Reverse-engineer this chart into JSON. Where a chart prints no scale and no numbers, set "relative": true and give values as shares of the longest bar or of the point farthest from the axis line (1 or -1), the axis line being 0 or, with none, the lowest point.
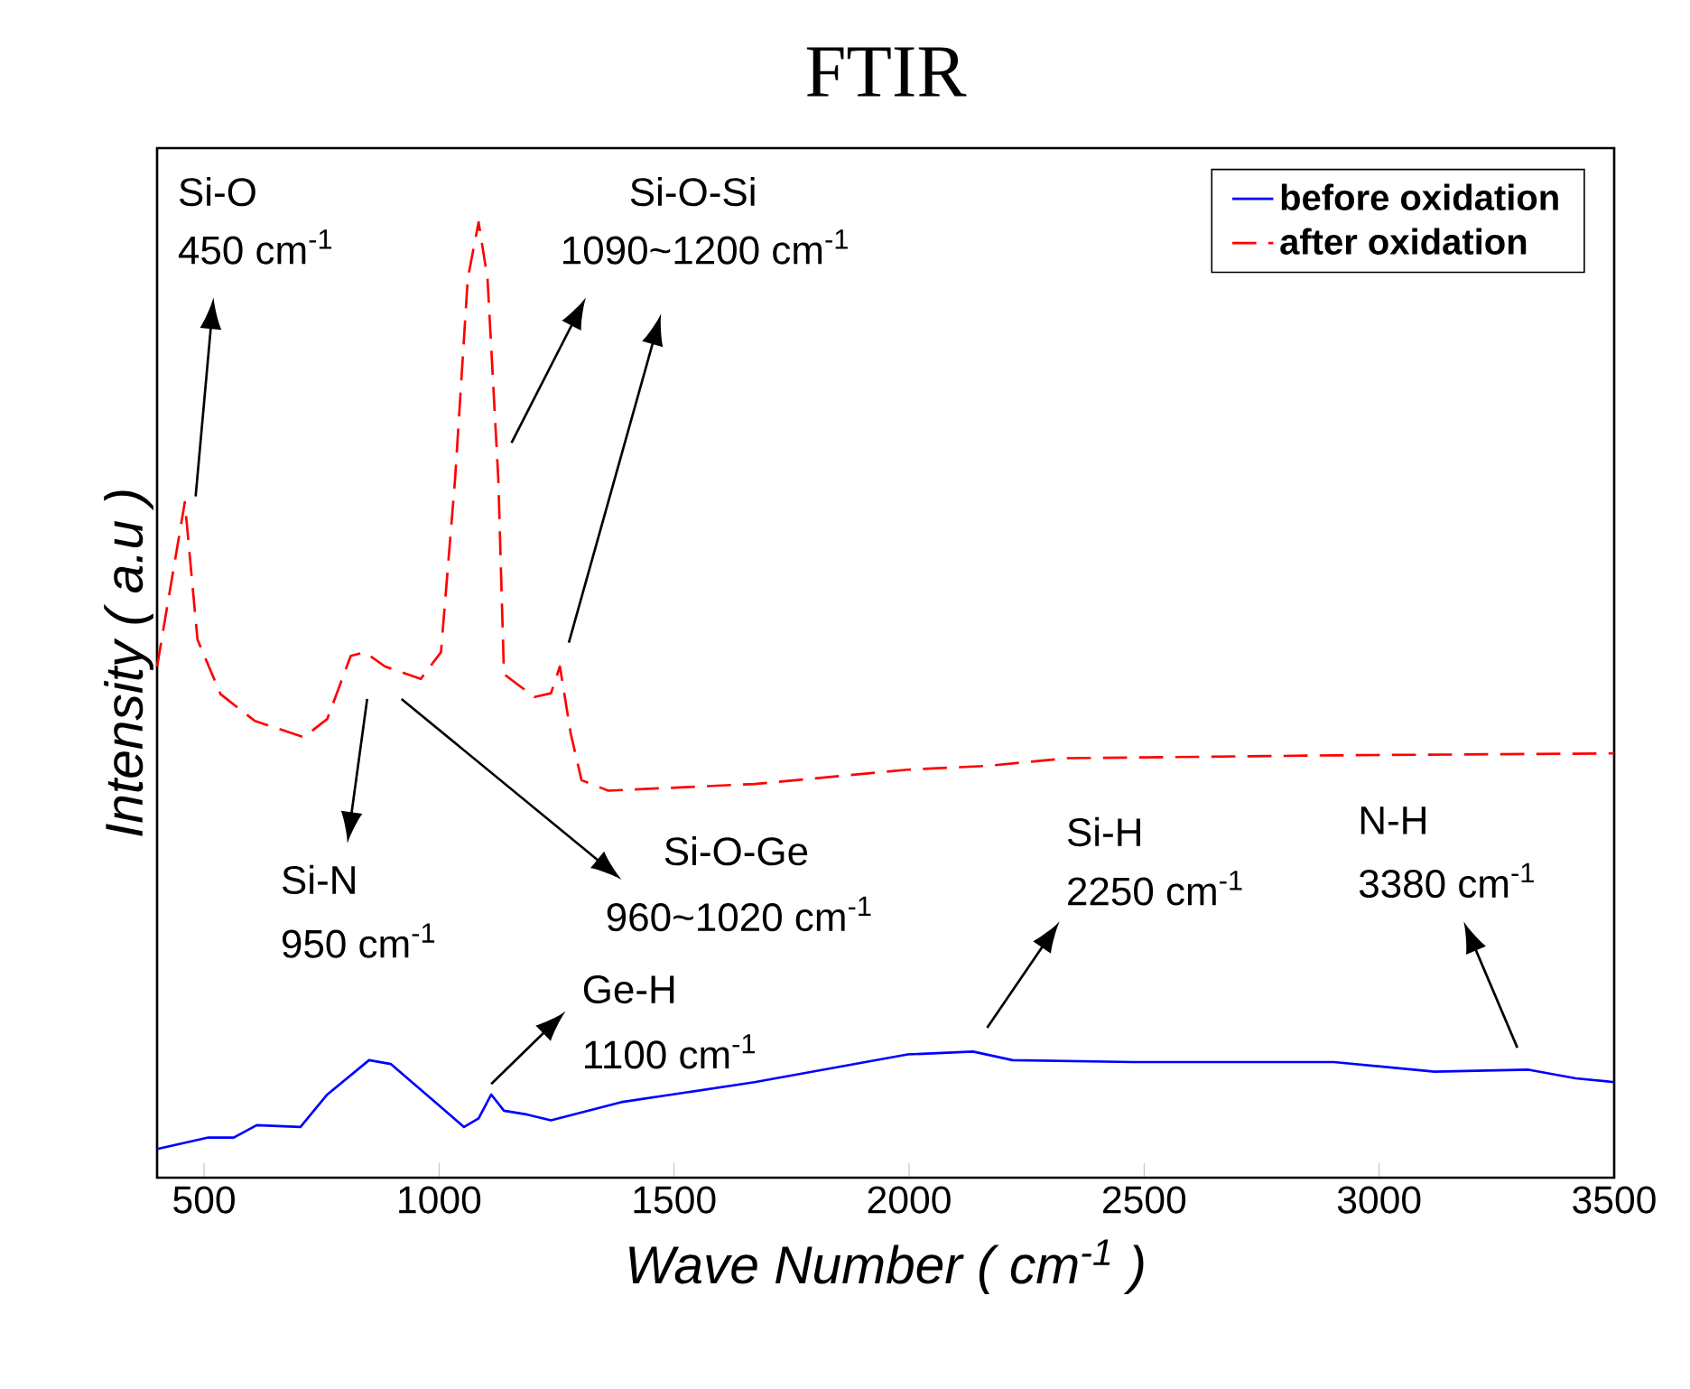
{
  "chart_data": {
    "type": "line",
    "title": "FTIR",
    "xlabel": "Wave Number ( cm$^{-1}$ )",
    "ylabel": "Intensity ( a.u )",
    "relative": true,
    "xlim": [
      400,
      3500
    ],
    "xticks": [
      500,
      1000,
      1500,
      2000,
      2500,
      3000,
      3500
    ],
    "legend": "top right",
    "series": [
      {
        "name": "before oxidation",
        "color": "#0000ff",
        "line_style": "solid",
        "x": [
          400,
          509,
          563,
          612,
          705,
          762,
          851,
          897,
          992,
          1053,
          1084,
          1111,
          1138,
          1188,
          1238,
          1387,
          1671,
          1997,
          2136,
          2220,
          2477,
          2904,
          3118,
          3318,
          3418,
          3500
        ],
        "values": [
          0.03,
          0.042,
          0.042,
          0.055,
          0.053,
          0.087,
          0.123,
          0.119,
          0.079,
          0.053,
          0.062,
          0.087,
          0.07,
          0.066,
          0.06,
          0.079,
          0.1,
          0.129,
          0.132,
          0.123,
          0.121,
          0.121,
          0.111,
          0.113,
          0.104,
          0.1
        ]
      },
      {
        "name": "after oxidation",
        "color": "#ff0000",
        "line_style": "dashed",
        "x": [
          400,
          459,
          486,
          535,
          608,
          712,
          762,
          812,
          842,
          885,
          961,
          1004,
          1034,
          1061,
          1084,
          1103,
          1126,
          1138,
          1203,
          1238,
          1257,
          1280,
          1303,
          1360,
          1671,
          1997,
          2167,
          2336,
          2904,
          3500
        ],
        "values": [
          0.535,
          0.707,
          0.563,
          0.506,
          0.478,
          0.461,
          0.48,
          0.546,
          0.55,
          0.535,
          0.522,
          0.55,
          0.731,
          0.941,
          1.0,
          0.941,
          0.731,
          0.527,
          0.503,
          0.507,
          0.535,
          0.465,
          0.416,
          0.405,
          0.412,
          0.427,
          0.431,
          0.439,
          0.442,
          0.444
        ]
      }
    ],
    "annotations": [
      "Si-O",
      "450 cm$^{-1}$",
      "Si-O-Si",
      "1090~1200 cm$^{-1}$",
      "Si-N",
      "950 cm$^{-1}$",
      "Si-O-Ge",
      "960~1020 cm$^{-1}$",
      "Ge-H",
      "1100 cm$^{-1}$",
      "Si-H",
      "2250 cm$^{-1}$",
      "N-H",
      "3380 cm$^{-1}$"
    ]
  }
}
